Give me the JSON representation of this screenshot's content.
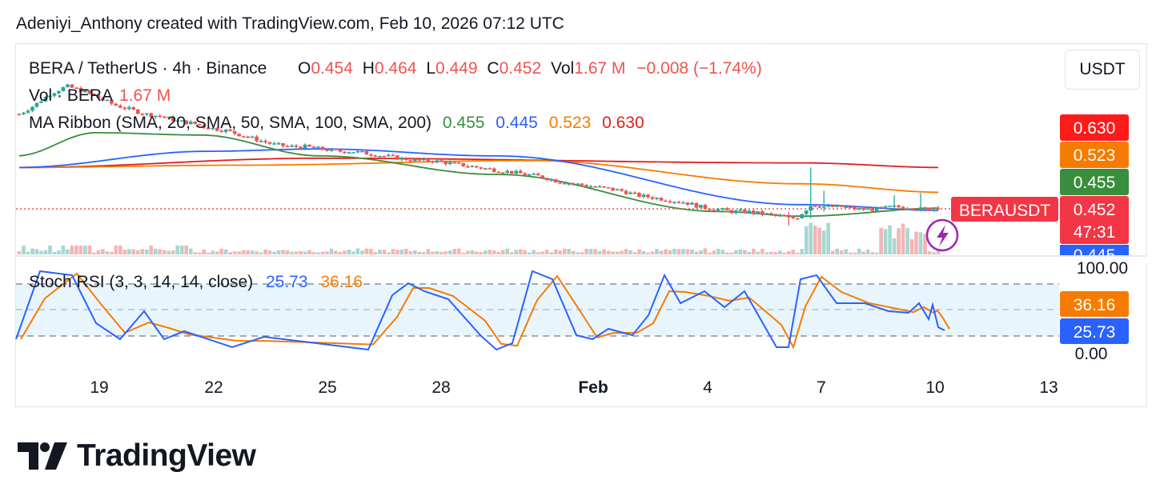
{
  "attribution": "Adeniyi_Anthony created with TradingView.com, Feb 10, 2026 07:12 UTC",
  "currency_button": "USDT",
  "legend": {
    "symbol": "BERA / TetherUS · 4h · Binance",
    "o_label": "O",
    "o_value": "0.454",
    "h_label": "H",
    "h_value": "0.464",
    "l_label": "L",
    "l_value": "0.449",
    "c_label": "C",
    "c_value": "0.452",
    "vol_label": "Vol",
    "vol_value": "1.67 M",
    "change": "−0.008 (−1.74%)",
    "vol_row_label": "Vol · BERA",
    "vol_row_value": "1.67 M",
    "ma_label": "MA Ribbon (SMA, 20, SMA, 50, SMA, 100, SMA, 200)",
    "ma_values": [
      "0.455",
      "0.445",
      "0.523",
      "0.630"
    ]
  },
  "price_tags": {
    "ma200": "0.630",
    "ma100": "0.523",
    "ma20": "0.455",
    "symbol_tag": "BERAUSDT",
    "last": "0.452",
    "countdown": "47:31",
    "ma50_partial": "0.445"
  },
  "stoch": {
    "label": "Stoch RSI (3, 3, 14, 14, close)",
    "k_value": "25.73",
    "d_value": "36.16",
    "scale_top": "100.00",
    "scale_bottom": "0.00"
  },
  "x_ticks": [
    "19",
    "22",
    "25",
    "28",
    "Feb",
    "4",
    "7",
    "10",
    "13"
  ],
  "logo_text": "TradingView",
  "colors": {
    "up": "#26a69a",
    "down": "#ef5350",
    "ma20": "#388e3c",
    "ma50": "#2962ff",
    "ma100": "#f57c00",
    "ma200": "#e31d1d",
    "stoch_k": "#2962ff",
    "stoch_d": "#f57c00",
    "band": "#e3f2fd"
  },
  "chart_data": {
    "type": "candlestick",
    "title": "BERA / TetherUS · 4h · Binance",
    "x_dates": [
      "19",
      "22",
      "25",
      "28",
      "Feb",
      "4",
      "7",
      "10",
      "13"
    ],
    "ohlc_last": {
      "open": 0.454,
      "high": 0.464,
      "low": 0.449,
      "close": 0.452,
      "volume": "1.67 M",
      "change": -0.008,
      "change_pct": -1.74
    },
    "close_approx": [
      0.86,
      0.9,
      0.95,
      0.98,
      0.96,
      0.93,
      0.9,
      0.88,
      0.86,
      0.85,
      0.83,
      0.82,
      0.8,
      0.79,
      0.77,
      0.75,
      0.73,
      0.72,
      0.72,
      0.71,
      0.7,
      0.7,
      0.69,
      0.68,
      0.67,
      0.66,
      0.66,
      0.65,
      0.64,
      0.63,
      0.62,
      0.61,
      0.6,
      0.59,
      0.57,
      0.56,
      0.55,
      0.54,
      0.53,
      0.51,
      0.5,
      0.49,
      0.48,
      0.46,
      0.45,
      0.44,
      0.44,
      0.43,
      0.42,
      0.41,
      0.47,
      0.46,
      0.46,
      0.45,
      0.45,
      0.46,
      0.46,
      0.45,
      0.452
    ],
    "ma_ribbon": [
      {
        "name": "SMA 20",
        "last": 0.455
      },
      {
        "name": "SMA 50",
        "last": 0.445
      },
      {
        "name": "SMA 100",
        "last": 0.523
      },
      {
        "name": "SMA 200",
        "last": 0.63
      }
    ],
    "stoch_rsi": {
      "params": "3, 3, 14, 14, close",
      "k": 25.73,
      "d": 36.16,
      "bands": [
        80,
        50,
        20
      ],
      "range": [
        0,
        100
      ]
    }
  }
}
